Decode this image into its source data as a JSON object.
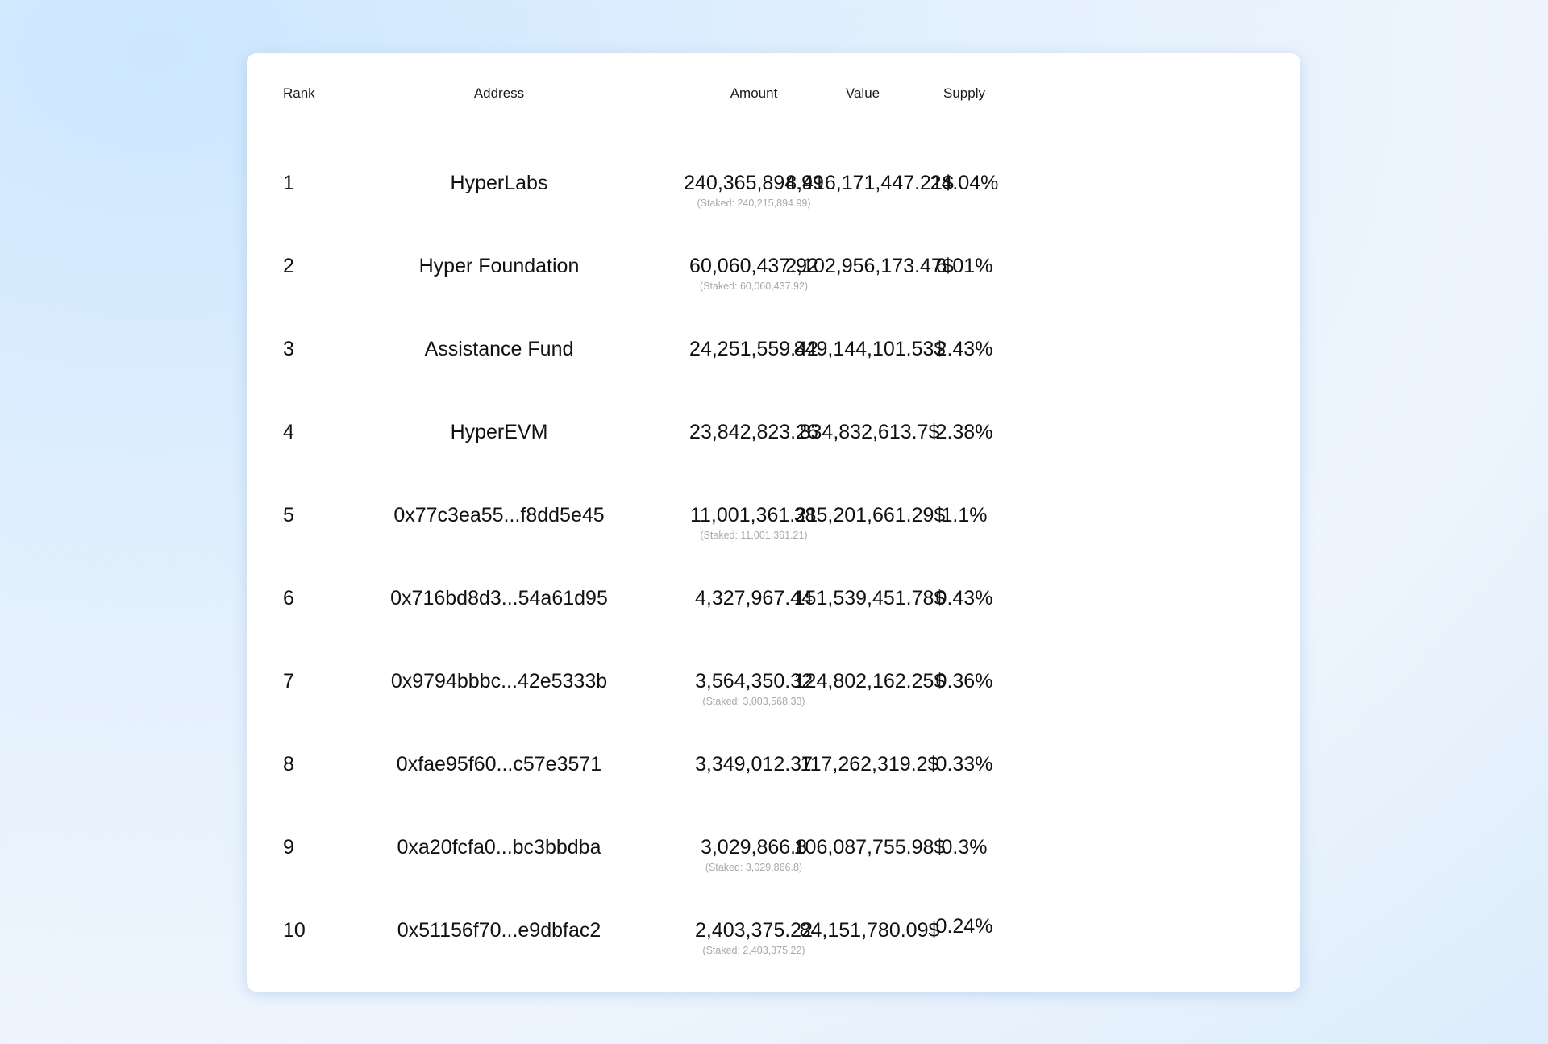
{
  "table": {
    "headers": {
      "rank": "Rank",
      "address": "Address",
      "amount": "Amount",
      "value": "Value",
      "supply": "Supply"
    },
    "rows": [
      {
        "rank": "1",
        "address": "HyperLabs",
        "amount": "240,365,894.99",
        "staked": "(Staked: 240,215,894.99)",
        "value": "8,416,171,447.21$",
        "supply": "24.04%"
      },
      {
        "rank": "2",
        "address": "Hyper Foundation",
        "amount": "60,060,437.92",
        "staked": "(Staked: 60,060,437.92)",
        "value": "2,102,956,173.47$",
        "supply": "6.01%"
      },
      {
        "rank": "3",
        "address": "Assistance Fund",
        "amount": "24,251,559.42",
        "staked": "",
        "value": "849,144,101.53$",
        "supply": "2.43%"
      },
      {
        "rank": "4",
        "address": "HyperEVM",
        "amount": "23,842,823.26",
        "staked": "",
        "value": "834,832,613.7$",
        "supply": "2.38%"
      },
      {
        "rank": "5",
        "address": "0x77c3ea55...f8dd5e45",
        "amount": "11,001,361.21",
        "staked": "(Staked: 11,001,361.21)",
        "value": "385,201,661.29$",
        "supply": "1.1%"
      },
      {
        "rank": "6",
        "address": "0x716bd8d3...54a61d95",
        "amount": "4,327,967.44",
        "staked": "",
        "value": "151,539,451.78$",
        "supply": "0.43%"
      },
      {
        "rank": "7",
        "address": "0x9794bbbc...42e5333b",
        "amount": "3,564,350.32",
        "staked": "(Staked: 3,003,568.33)",
        "value": "124,802,162.25$",
        "supply": "0.36%"
      },
      {
        "rank": "8",
        "address": "0xfae95f60...c57e3571",
        "amount": "3,349,012.37",
        "staked": "",
        "value": "117,262,319.2$",
        "supply": "0.33%"
      },
      {
        "rank": "9",
        "address": "0xa20fcfa0...bc3bbdba",
        "amount": "3,029,866.8",
        "staked": "(Staked: 3,029,866.8)",
        "value": "106,087,755.98$",
        "supply": "0.3%"
      },
      {
        "rank": "10",
        "address": "0x51156f70...e9dbfac2",
        "amount": "2,403,375.22",
        "staked": "(Staked: 2,403,375.22)",
        "value": "84,151,780.09$",
        "supply": "0.24%"
      }
    ]
  }
}
